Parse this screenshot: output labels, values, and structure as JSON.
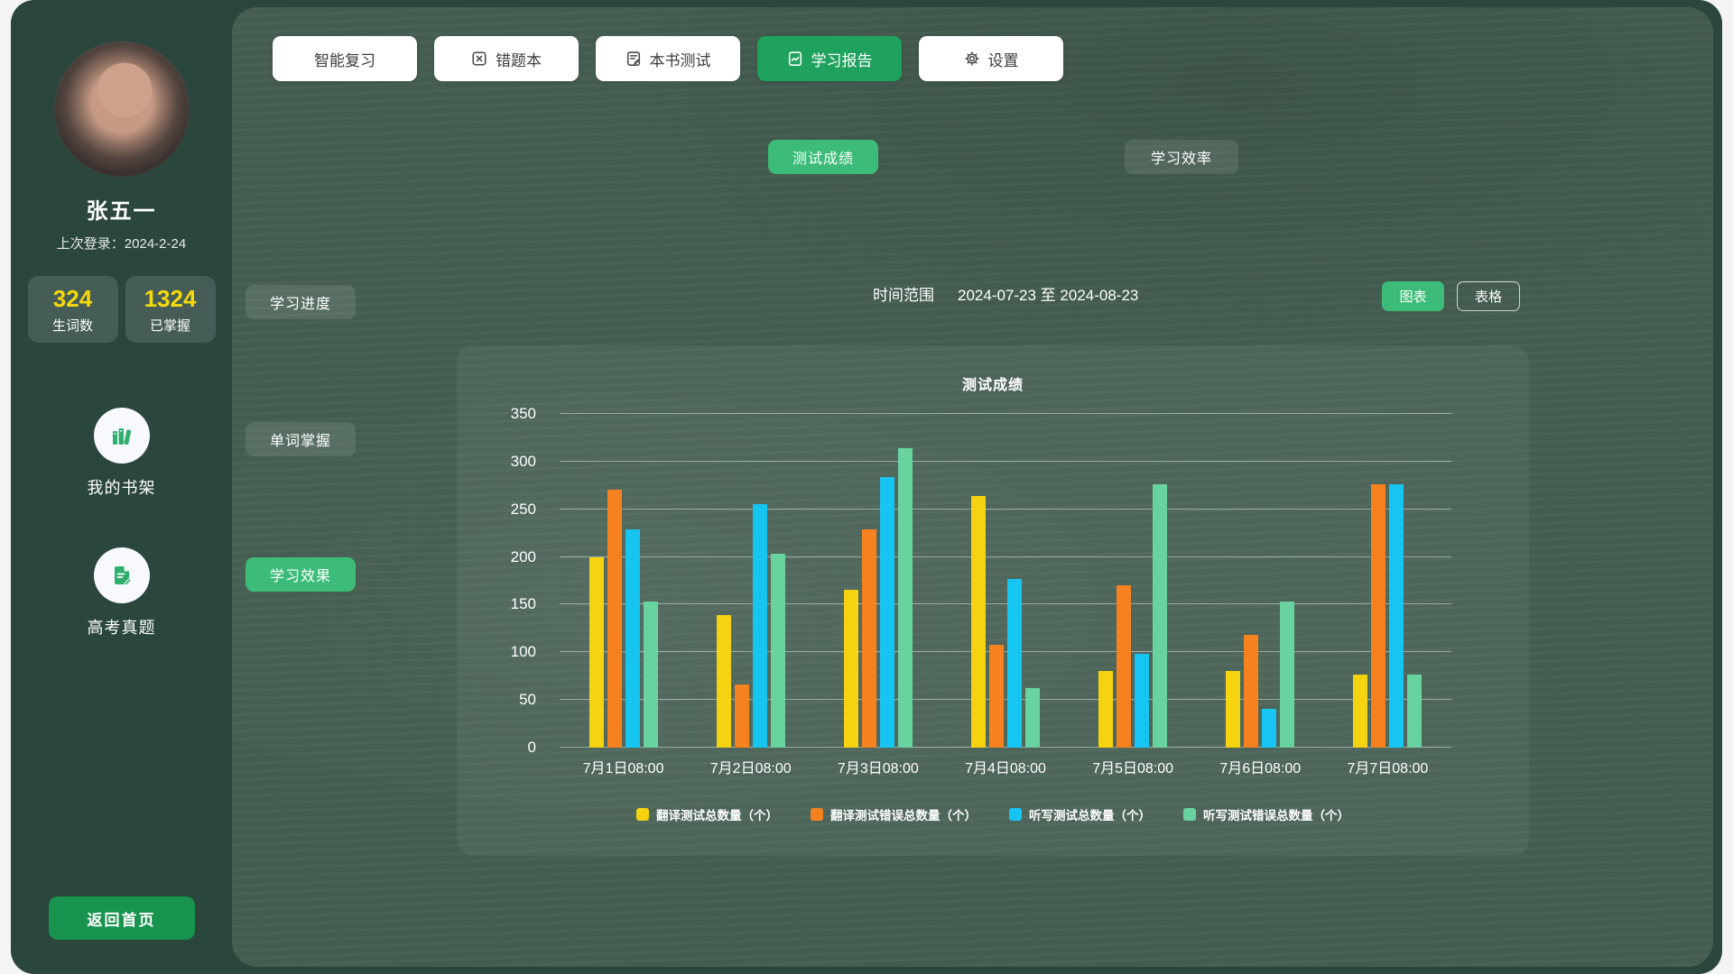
{
  "sidebar": {
    "name": "张五一",
    "last_login": "上次登录：2024-2-24",
    "stats": [
      {
        "value": "324",
        "label": "生词数"
      },
      {
        "value": "1324",
        "label": "已掌握"
      }
    ],
    "shortcuts": [
      {
        "label": "我的书架",
        "icon": "bookshelf-icon"
      },
      {
        "label": "高考真题",
        "icon": "exam-paper-icon"
      }
    ],
    "back_button": "返回首页"
  },
  "tabs": [
    {
      "label": "智能复习",
      "active": false
    },
    {
      "label": "错题本",
      "active": false,
      "icon": "wrong-book-icon"
    },
    {
      "label": "本书测试",
      "active": false,
      "icon": "book-test-icon"
    },
    {
      "label": "学习报告",
      "active": true,
      "icon": "report-icon"
    },
    {
      "label": "设置",
      "active": false,
      "icon": "gear-icon"
    }
  ],
  "subtabs": [
    {
      "label": "测试成绩",
      "active": true
    },
    {
      "label": "学习效率",
      "active": false
    }
  ],
  "side_menu": [
    {
      "label": "学习进度",
      "active": false
    },
    {
      "label": "单词掌握",
      "active": false
    },
    {
      "label": "学习效果",
      "active": true
    }
  ],
  "filter": {
    "time_range_label": "时间范围",
    "time_range_value": "2024-07-23 至 2024-08-23",
    "view_chart": "图表",
    "view_table": "表格"
  },
  "chart_data": {
    "type": "bar",
    "title": "测试成绩",
    "categories": [
      "7月1日08:00",
      "7月2日08:00",
      "7月3日08:00",
      "7月4日08:00",
      "7月5日08:00",
      "7月6日08:00",
      "7月7日08:00"
    ],
    "series": [
      {
        "name": "翻译测试总数量（个）",
        "color": "#f6d311",
        "values": [
          200,
          139,
          166,
          264,
          80,
          80,
          77
        ]
      },
      {
        "name": "翻译测试错误总数量（个）",
        "color": "#f5821f",
        "values": [
          271,
          66,
          229,
          108,
          170,
          118,
          276
        ]
      },
      {
        "name": "听写测试总数量（个）",
        "color": "#17c5f2",
        "values": [
          229,
          255,
          284,
          177,
          98,
          41,
          276
        ]
      },
      {
        "name": "听写测试错误总数量（个）",
        "color": "#69d3a0",
        "values": [
          153,
          203,
          314,
          62,
          276,
          153,
          77
        ]
      }
    ],
    "ylim": [
      0,
      350
    ],
    "ytick_step": 50,
    "grid": true,
    "legend_position": "bottom"
  },
  "colors": {
    "accent_green": "#3cbc78",
    "active_tab_green": "#1ea25d",
    "back_button_green": "#18944e",
    "stat_number_yellow": "#f6d90a",
    "sidebar_bg": "#2a463d",
    "board_bg": "#465f52"
  }
}
